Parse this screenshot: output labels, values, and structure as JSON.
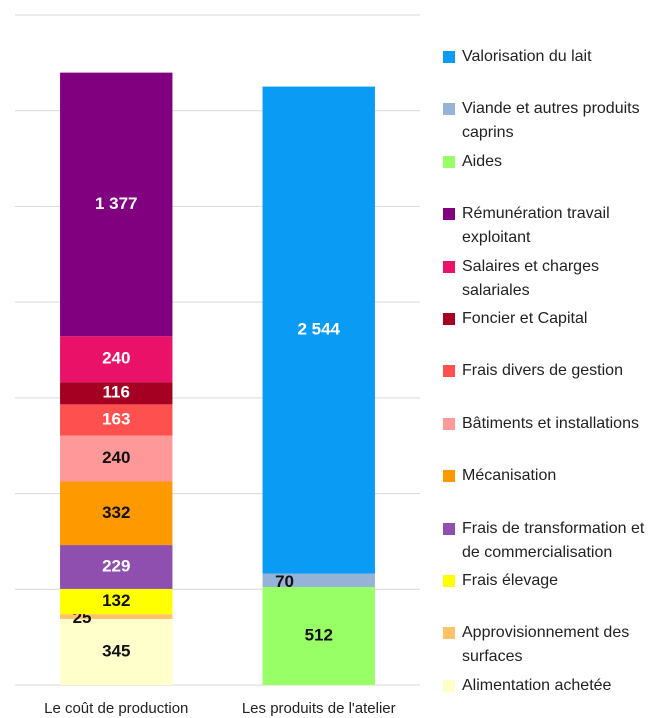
{
  "chart_data": {
    "type": "stacked_bar",
    "categories": [
      "Le coût de production",
      "Les produits de l'atelier"
    ],
    "series": [
      {
        "name": "Valorisation du lait",
        "color": "#0a9cf5",
        "values": [
          null,
          2544
        ],
        "value_labels": [
          null,
          "2 544"
        ]
      },
      {
        "name": "Viande et autres produits caprins",
        "color": "#95b3d7",
        "values": [
          null,
          70
        ]
      },
      {
        "name": "Aides",
        "color": "#99ff66",
        "values": [
          null,
          512
        ]
      },
      {
        "name": "Rémunération travail exploitant",
        "color": "#800080",
        "values": [
          1377,
          null
        ],
        "value_labels": [
          "1 377",
          null
        ]
      },
      {
        "name": "Salaires et charges salariales",
        "color": "#ea1168",
        "values": [
          240,
          null
        ]
      },
      {
        "name": "Foncier et Capital",
        "color": "#a50021",
        "values": [
          116,
          null
        ]
      },
      {
        "name": "Frais divers de gestion",
        "color": "#ff5050",
        "values": [
          163,
          null
        ]
      },
      {
        "name": "Bâtiments et installations",
        "color": "#ff9999",
        "values": [
          240,
          null
        ]
      },
      {
        "name": "Mécanisation",
        "color": "#ff9900",
        "values": [
          332,
          null
        ]
      },
      {
        "name": "Frais de transformation et de commercialisation",
        "color": "#8e4fae",
        "values": [
          229,
          null
        ]
      },
      {
        "name": "Frais élevage",
        "color": "#ffff00",
        "values": [
          132,
          null
        ]
      },
      {
        "name": "Approvisionnement des surfaces",
        "color": "#ffc266",
        "values": [
          25,
          null
        ]
      },
      {
        "name": "Alimentation achetée",
        "color": "#ffffcc",
        "values": [
          345,
          null
        ]
      }
    ],
    "ylim": [
      0,
      3500
    ],
    "yticks": [
      0,
      500,
      1000,
      1500,
      2000,
      2500,
      3000,
      3500
    ],
    "grid": true,
    "legend": "right"
  }
}
